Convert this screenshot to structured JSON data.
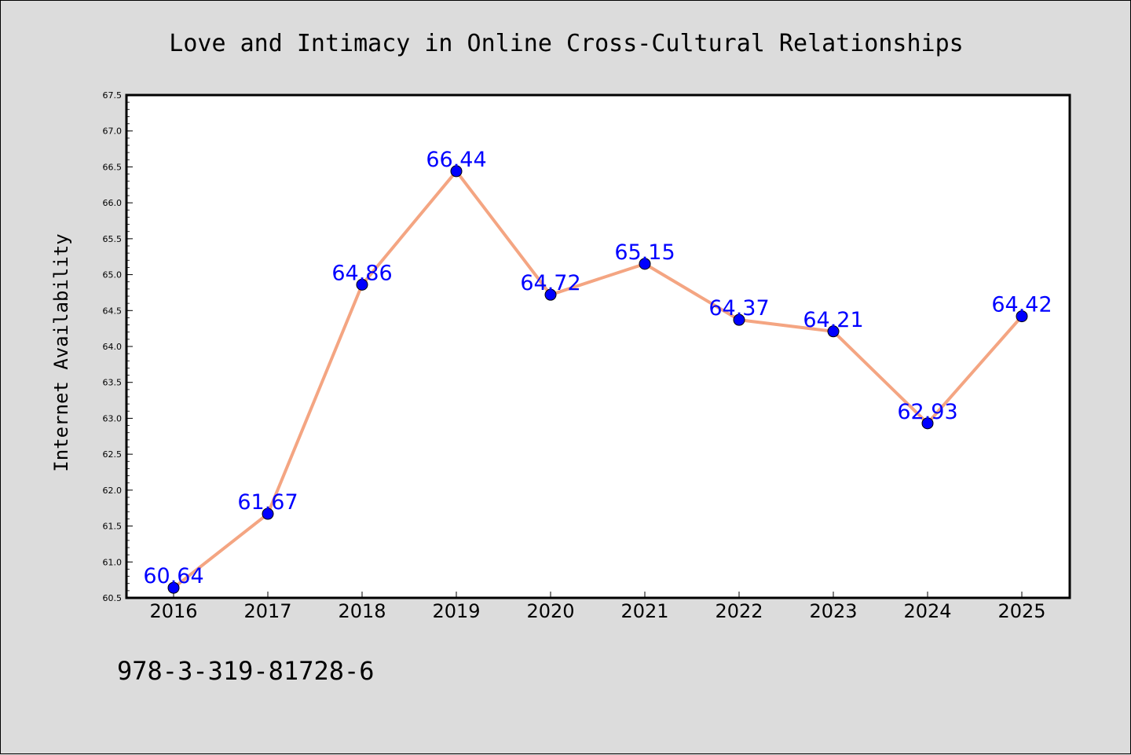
{
  "chart_data": {
    "type": "line",
    "title": "Love and Intimacy in Online Cross-Cultural Relationships",
    "xlabel": "",
    "ylabel": "Internet Availability",
    "categories": [
      "2016",
      "2017",
      "2018",
      "2019",
      "2020",
      "2021",
      "2022",
      "2023",
      "2024",
      "2025"
    ],
    "values": [
      60.64,
      61.67,
      64.86,
      66.44,
      64.72,
      65.15,
      64.37,
      64.21,
      62.93,
      64.42
    ],
    "data_labels": [
      "60.64",
      "61.67",
      "64.86",
      "66.44",
      "64.72",
      "65.15",
      "64.37",
      "64.21",
      "62.93",
      "64.42"
    ],
    "ylim": [
      60.5,
      67.5
    ],
    "yticks": [
      "60.5",
      "61.0",
      "61.5",
      "62.0",
      "62.5",
      "63.0",
      "63.5",
      "64.0",
      "64.5",
      "65.0",
      "65.5",
      "66.0",
      "66.5",
      "67.0",
      "67.5"
    ],
    "line_color": "#f4a582",
    "marker_color": "#0000ff",
    "label_color": "#0000ff",
    "grid": false,
    "legend": "none"
  },
  "footer": {
    "isbn": "978-3-319-81728-6"
  }
}
